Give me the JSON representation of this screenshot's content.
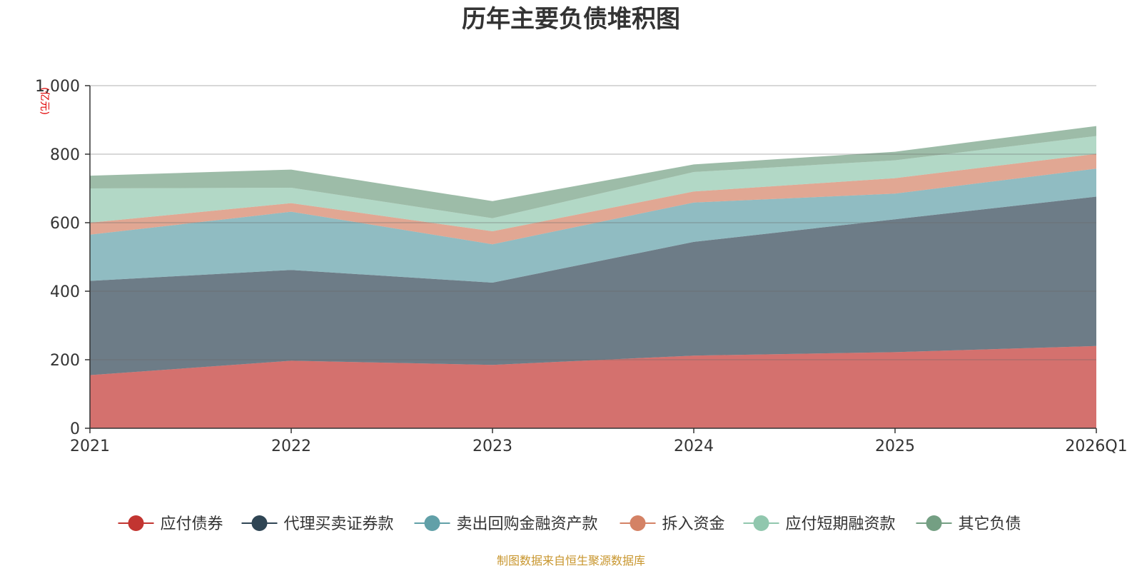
{
  "chart_data": {
    "type": "area",
    "stacked": true,
    "title": "历年主要负债堆积图",
    "unit": "(亿元)",
    "categories": [
      "2021",
      "2022",
      "2023",
      "2024",
      "2025",
      "2026Q1"
    ],
    "y_ticks": [
      "0",
      "200",
      "400",
      "600",
      "800",
      "1,000"
    ],
    "ylim": [
      0,
      1000
    ],
    "legend_position": "bottom",
    "series": [
      {
        "name": "应付债券",
        "color": "#c23531",
        "values": [
          155,
          197,
          185,
          212,
          222,
          240
        ]
      },
      {
        "name": "代理买卖证券款",
        "color": "#2f4554",
        "values": [
          275,
          265,
          240,
          332,
          388,
          436
        ]
      },
      {
        "name": "卖出回购金融资产款",
        "color": "#61a0a8",
        "values": [
          135,
          170,
          112,
          115,
          75,
          82
        ]
      },
      {
        "name": "拆入资金",
        "color": "#d48265",
        "values": [
          35,
          25,
          38,
          32,
          45,
          43
        ]
      },
      {
        "name": "应付短期融资款",
        "color": "#91c7ae",
        "values": [
          100,
          45,
          38,
          57,
          52,
          52
        ]
      },
      {
        "name": "其它负债",
        "color": "#749f83",
        "values": [
          37,
          53,
          50,
          22,
          25,
          29
        ]
      }
    ],
    "source": "制图数据来自恒生聚源数据库"
  }
}
